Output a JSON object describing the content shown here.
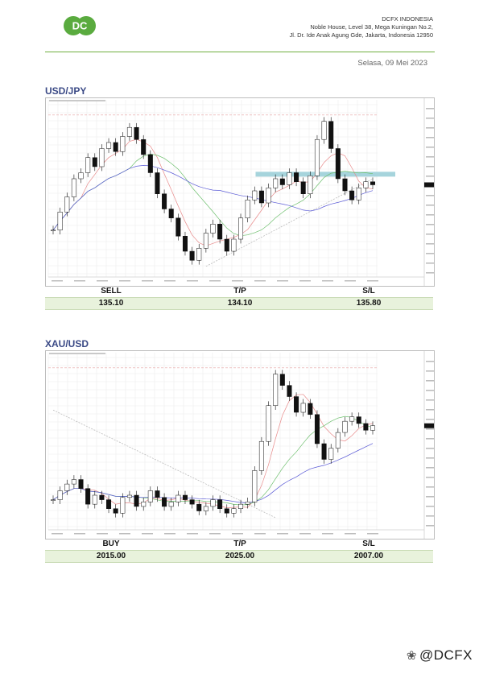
{
  "header": {
    "logo_text": "DC",
    "brand_green": "#5aab3f",
    "company_name": "DCFX INDONESIA",
    "address_line1": "Noble House, Level 38, Mega Kuningan No.2,",
    "address_line2": "Jl. Dr. Ide Anak Agung Gde, Jakarta, Indonesia 12950",
    "date": "Selasa, 09 Mei 2023"
  },
  "sections": [
    {
      "title": "USD/JPY",
      "trade": {
        "labels": [
          "SELL",
          "T/P",
          "S/L"
        ],
        "values": [
          "135.10",
          "134.10",
          "135.80"
        ]
      }
    },
    {
      "title": "XAU/USD",
      "trade": {
        "labels": [
          "BUY",
          "T/P",
          "S/L"
        ],
        "values": [
          "2015.00",
          "2025.00",
          "2007.00"
        ]
      }
    }
  ],
  "watermark": {
    "icon": "weibo-like-mark-icon",
    "text": "@DCFX"
  },
  "chart_data": [
    {
      "type": "candlestick",
      "series": [
        {
          "values": [
            134.2,
            134.8,
            135.3,
            135.9,
            136.1,
            136.6,
            136.3,
            136.9,
            137.1,
            136.8,
            137.3,
            137.6,
            137.2,
            136.7,
            136.1,
            135.4,
            134.9,
            134.6,
            134.0,
            133.5,
            133.2,
            133.6,
            134.1,
            134.4,
            133.9,
            133.5,
            133.9,
            134.6,
            135.2,
            135.5,
            135.1,
            135.6,
            135.9,
            135.7,
            136.1,
            135.8,
            135.4,
            136.0,
            137.2,
            137.8,
            136.9,
            135.9,
            135.5,
            135.2,
            135.6,
            135.8,
            135.7
          ]
        }
      ],
      "annotations": {
        "resistance_zone": true,
        "rising_trendline": true
      },
      "grid": true
    },
    {
      "type": "candlestick",
      "series": [
        {
          "values": [
            1990,
            1994,
            1997,
            1999,
            1995,
            1988,
            1992,
            1990,
            1986,
            1984,
            1991,
            1992,
            1987,
            1989,
            1994,
            1991,
            1987,
            1989,
            1992,
            1990,
            1988,
            1985,
            1987,
            1990,
            1986,
            1984,
            1986,
            1988,
            1989,
            2003,
            2016,
            2032,
            2046,
            2041,
            2036,
            2029,
            2033,
            2028,
            2015,
            2008,
            2013,
            2020,
            2025,
            2027,
            2024,
            2021,
            2023
          ]
        }
      ],
      "annotations": {
        "falling_trendline": true
      },
      "grid": true
    }
  ]
}
